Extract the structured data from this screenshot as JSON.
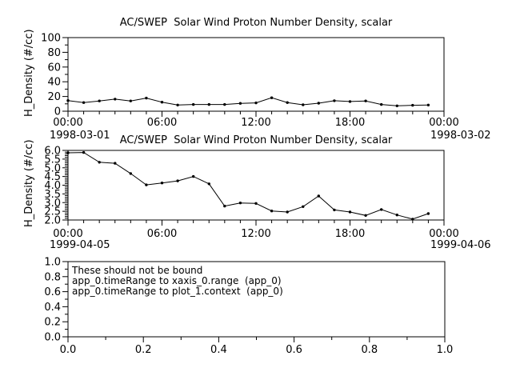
{
  "app": {
    "background_color": "#ffffff",
    "foreground_color": "#000000"
  },
  "chart_data": [
    {
      "type": "line",
      "title": "AC/SWEP  Solar Wind Proton Number Density, scalar",
      "ylabel": "H_Density (#/cc)",
      "ylim": [
        0,
        100
      ],
      "yticks": [
        0,
        20,
        40,
        60,
        80,
        100
      ],
      "ytick_labels": [
        "0",
        "20",
        "40",
        "60",
        "80",
        "100"
      ],
      "y_minor_step": 10,
      "xlim": [
        0,
        24
      ],
      "xticks": [
        0,
        6,
        12,
        18,
        24
      ],
      "xtick_labels": [
        "00:00",
        "06:00",
        "12:00",
        "18:00",
        "00:00"
      ],
      "x_minor_step": 1,
      "start_date": "1998-03-01",
      "end_date": "1998-03-02",
      "legend": "none",
      "grid": false,
      "marker": "dot",
      "line_color": "#000000",
      "series": [
        {
          "name": "H_Density",
          "x_hours": [
            0,
            1,
            2,
            3,
            4,
            5,
            6,
            7,
            8,
            9,
            10,
            11,
            12,
            13,
            14,
            15,
            16,
            17,
            18,
            19,
            20,
            21,
            22,
            23
          ],
          "values": [
            14.5,
            11.7,
            13.9,
            16.4,
            13.9,
            17.8,
            12.3,
            8.4,
            9.1,
            9.1,
            9.1,
            10.6,
            11.3,
            18.3,
            11.7,
            8.7,
            10.9,
            14.2,
            13.1,
            13.9,
            9.1,
            7.3,
            8.0,
            8.4
          ]
        }
      ]
    },
    {
      "type": "line",
      "title": "AC/SWEP  Solar Wind Proton Number Density, scalar",
      "ylabel": "H_Density (#/cc)",
      "ylim": [
        2.0,
        6.0
      ],
      "yticks": [
        2.0,
        2.5,
        3.0,
        3.5,
        4.0,
        4.5,
        5.0,
        5.5,
        6.0
      ],
      "ytick_labels": [
        "2.0",
        "2.5",
        "3.0",
        "3.5",
        "4.0",
        "4.5",
        "5.0",
        "5.5",
        "6.0"
      ],
      "y_minor_step": 0.1,
      "xlim": [
        0,
        24
      ],
      "xticks": [
        0,
        6,
        12,
        18,
        24
      ],
      "xtick_labels": [
        "00:00",
        "06:00",
        "12:00",
        "18:00",
        "00:00"
      ],
      "x_minor_step": 1,
      "start_date": "1999-04-05",
      "end_date": "1999-04-06",
      "legend": "none",
      "grid": false,
      "marker": "dot",
      "line_color": "#000000",
      "series": [
        {
          "name": "H_Density",
          "x_hours": [
            0,
            1,
            2,
            3,
            4,
            5,
            6,
            7,
            8,
            9,
            10,
            11,
            12,
            13,
            14,
            15,
            16,
            17,
            18,
            19,
            20,
            21,
            22,
            23
          ],
          "values": [
            5.86,
            5.88,
            5.32,
            5.26,
            4.67,
            4.02,
            4.13,
            4.25,
            4.5,
            4.08,
            2.8,
            2.98,
            2.95,
            2.52,
            2.46,
            2.77,
            3.38,
            2.58,
            2.46,
            2.26,
            2.6,
            2.29,
            2.05,
            2.37
          ]
        }
      ]
    },
    {
      "type": "empty",
      "title": "",
      "ylabel": "",
      "ylim": [
        0.0,
        1.0
      ],
      "yticks": [
        0.0,
        0.2,
        0.4,
        0.6,
        0.8,
        1.0
      ],
      "ytick_labels": [
        "0.0",
        "0.2",
        "0.4",
        "0.6",
        "0.8",
        "1.0"
      ],
      "y_minor_step": 0.1,
      "xlim": [
        0.0,
        1.0
      ],
      "xticks": [
        0.0,
        0.2,
        0.4,
        0.6,
        0.8,
        1.0
      ],
      "xtick_labels": [
        "0.0",
        "0.2",
        "0.4",
        "0.6",
        "0.8",
        "1.0"
      ],
      "x_minor_step": 0.1,
      "grid": false,
      "annotation_lines": [
        "These should not be bound",
        "app_0.timeRange to xaxis_0.range  (app_0)",
        "app_0.timeRange to plot_1.context  (app_0)"
      ]
    }
  ]
}
